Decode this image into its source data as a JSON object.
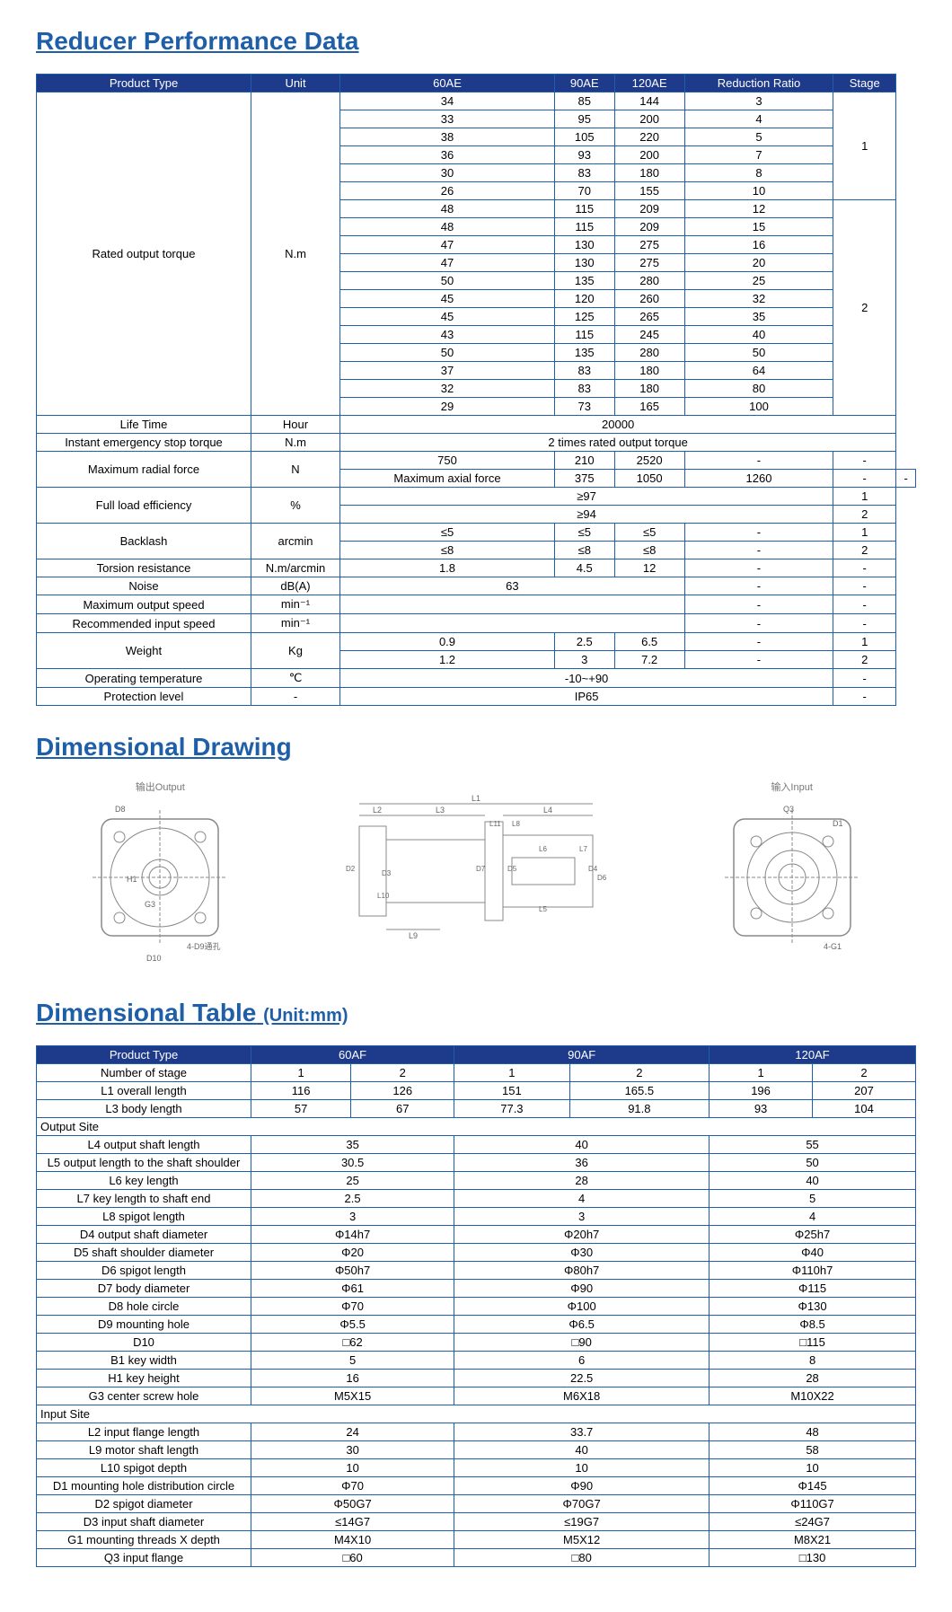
{
  "perf": {
    "title": "Reducer Performance Data",
    "headers": [
      "Product Type",
      "Unit",
      "60AE",
      "90AE",
      "120AE",
      "Reduction Ratio",
      "Stage"
    ],
    "torque_label": "Rated output torque",
    "torque_unit": "N.m",
    "torque_rows": [
      [
        "34",
        "85",
        "144",
        "3"
      ],
      [
        "33",
        "95",
        "200",
        "4"
      ],
      [
        "38",
        "105",
        "220",
        "5"
      ],
      [
        "36",
        "93",
        "200",
        "7"
      ],
      [
        "30",
        "83",
        "180",
        "8"
      ],
      [
        "26",
        "70",
        "155",
        "10"
      ],
      [
        "48",
        "115",
        "209",
        "12"
      ],
      [
        "48",
        "115",
        "209",
        "15"
      ],
      [
        "47",
        "130",
        "275",
        "16"
      ],
      [
        "47",
        "130",
        "275",
        "20"
      ],
      [
        "50",
        "135",
        "280",
        "25"
      ],
      [
        "45",
        "120",
        "260",
        "32"
      ],
      [
        "45",
        "125",
        "265",
        "35"
      ],
      [
        "43",
        "115",
        "245",
        "40"
      ],
      [
        "50",
        "135",
        "280",
        "50"
      ],
      [
        "37",
        "83",
        "180",
        "64"
      ],
      [
        "32",
        "83",
        "180",
        "80"
      ],
      [
        "29",
        "73",
        "165",
        "100"
      ]
    ],
    "stage1": "1",
    "stage2": "2",
    "rows": [
      {
        "p": "Life Time",
        "u": "Hour",
        "v": "20000",
        "vs": 5
      },
      {
        "p": "Instant emergency stop torque",
        "u": "N.m",
        "v": "2 times rated output torque",
        "vs": 5
      },
      {
        "p": "Maximum radial force",
        "u": "N",
        "ur": 2,
        "c": [
          "750",
          "210",
          "2520",
          "-",
          "-"
        ]
      },
      {
        "p": "Maximum axial force",
        "nounit": 1,
        "c": [
          "375",
          "1050",
          "1260",
          "-",
          "-"
        ]
      },
      {
        "p": "Full load efficiency",
        "u": "%",
        "ur": 2,
        "v": "≥97",
        "vs": 4,
        "s": "1"
      },
      {
        "nounit": 1,
        "v": "≥94",
        "vs": 4,
        "s": "2"
      },
      {
        "p": "Backlash",
        "u": "arcmin",
        "ur": 2,
        "c": [
          "≤5",
          "≤5",
          "≤5",
          "-"
        ],
        "s": "1"
      },
      {
        "nounit": 1,
        "c": [
          "≤8",
          "≤8",
          "≤8",
          "-"
        ],
        "s": "2"
      },
      {
        "p": "Torsion resistance",
        "u": "N.m/arcmin",
        "c": [
          "1.8",
          "4.5",
          "12",
          "-",
          "-"
        ]
      },
      {
        "p": "Noise",
        "u": "dB(A)",
        "v": "63",
        "vs": 3,
        "c2": [
          "-",
          "-"
        ]
      },
      {
        "p": "Maximum output speed",
        "u": "min⁻¹",
        "v": "",
        "vs": 3,
        "c2": [
          "-",
          "-"
        ]
      },
      {
        "p": "Recommended input speed",
        "u": "min⁻¹",
        "v": "",
        "vs": 3,
        "c2": [
          "-",
          "-"
        ]
      },
      {
        "p": "Weight",
        "u": "Kg",
        "ur": 2,
        "c": [
          "0.9",
          "2.5",
          "6.5",
          "-"
        ],
        "s": "1"
      },
      {
        "nounit": 1,
        "c": [
          "1.2",
          "3",
          "7.2",
          "-"
        ],
        "s": "2"
      },
      {
        "p": "Operating temperature",
        "u": "℃",
        "v": "-10~+90",
        "vs": 4,
        "c2": [
          "-"
        ]
      },
      {
        "p": "Protection level",
        "u": "-",
        "v": "IP65",
        "vs": 4,
        "c2": [
          "-"
        ]
      }
    ]
  },
  "drawing": {
    "title": "Dimensional Drawing",
    "out": "输出Output",
    "in": "输入Input"
  },
  "dim": {
    "title": "Dimensional Table",
    "unit": "(Unit:mm)",
    "headers": [
      "Product Type",
      "60AF",
      "90AF",
      "120AF"
    ],
    "r_stage": {
      "p": "Number of stage",
      "c": [
        "1",
        "2",
        "1",
        "2",
        "1",
        "2"
      ]
    },
    "r_l1": {
      "p": "L1 overall length",
      "c": [
        "116",
        "126",
        "151",
        "165.5",
        "196",
        "207"
      ]
    },
    "r_l3": {
      "p": "L3 body length",
      "c": [
        "57",
        "67",
        "77.3",
        "91.8",
        "93",
        "104"
      ]
    },
    "sec_out": "Output Site",
    "sec_in": "Input Site",
    "out_rows": [
      {
        "p": "L4 output shaft length",
        "c": [
          "35",
          "40",
          "55"
        ]
      },
      {
        "p": "L5 output length to the shaft shoulder",
        "c": [
          "30.5",
          "36",
          "50"
        ]
      },
      {
        "p": "L6 key length",
        "c": [
          "25",
          "28",
          "40"
        ]
      },
      {
        "p": "L7 key length to shaft end",
        "c": [
          "2.5",
          "4",
          "5"
        ]
      },
      {
        "p": "L8 spigot length",
        "c": [
          "3",
          "3",
          "4"
        ]
      },
      {
        "p": "D4 output shaft diameter",
        "c": [
          "Φ14h7",
          "Φ20h7",
          "Φ25h7"
        ]
      },
      {
        "p": "D5 shaft shoulder diameter",
        "c": [
          "Φ20",
          "Φ30",
          "Φ40"
        ]
      },
      {
        "p": "D6 spigot length",
        "c": [
          "Φ50h7",
          "Φ80h7",
          "Φ110h7"
        ]
      },
      {
        "p": "D7 body diameter",
        "c": [
          "Φ61",
          "Φ90",
          "Φ115"
        ]
      },
      {
        "p": "D8 hole circle",
        "c": [
          "Φ70",
          "Φ100",
          "Φ130"
        ]
      },
      {
        "p": "D9 mounting hole",
        "c": [
          "Φ5.5",
          "Φ6.5",
          "Φ8.5"
        ]
      },
      {
        "p": "D10",
        "c": [
          "□62",
          "□90",
          "□115"
        ]
      },
      {
        "p": "B1 key width",
        "c": [
          "5",
          "6",
          "8"
        ]
      },
      {
        "p": "H1 key height",
        "c": [
          "16",
          "22.5",
          "28"
        ]
      },
      {
        "p": "G3 center screw hole",
        "c": [
          "M5X15",
          "M6X18",
          "M10X22"
        ]
      }
    ],
    "in_rows": [
      {
        "p": "L2 input flange length",
        "c": [
          "24",
          "33.7",
          "48"
        ]
      },
      {
        "p": "L9 motor shaft length",
        "c": [
          "30",
          "40",
          "58"
        ]
      },
      {
        "p": "L10 spigot depth",
        "c": [
          "10",
          "10",
          "10"
        ]
      },
      {
        "p": "D1 mounting hole distribution circle",
        "c": [
          "Φ70",
          "Φ90",
          "Φ145"
        ]
      },
      {
        "p": "D2 spigot diameter",
        "c": [
          "Φ50G7",
          "Φ70G7",
          "Φ110G7"
        ]
      },
      {
        "p": "D3 input shaft diameter",
        "c": [
          "≤14G7",
          "≤19G7",
          "≤24G7"
        ]
      },
      {
        "p": "G1 mounting threads X depth",
        "c": [
          "M4X10",
          "M5X12",
          "M8X21"
        ]
      },
      {
        "p": "Q3 input flange",
        "c": [
          "□60",
          "□80",
          "□130"
        ]
      }
    ]
  }
}
